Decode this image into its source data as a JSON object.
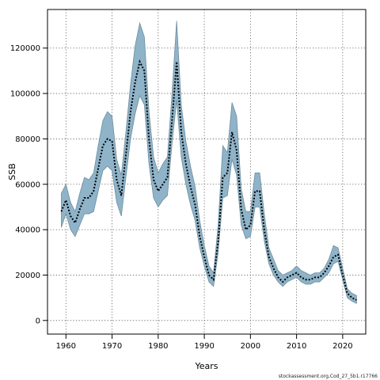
{
  "chart_data": {
    "type": "line",
    "title": "",
    "xlabel": "Years",
    "ylabel": "SSB",
    "xlim": [
      1956,
      2025
    ],
    "ylim": [
      -6000,
      137000
    ],
    "grid": true,
    "x_ticks": [
      1960,
      1970,
      1980,
      1990,
      2000,
      2010,
      2020
    ],
    "y_ticks": [
      0,
      20000,
      40000,
      60000,
      80000,
      100000,
      120000
    ],
    "x_tick_labels": [
      "1960",
      "1970",
      "1980",
      "1990",
      "2000",
      "2010",
      "2020"
    ],
    "y_tick_labels": [
      "0",
      "20000",
      "40000",
      "60000",
      "80000",
      "100000",
      "120000"
    ],
    "series": [
      {
        "role": "ssb-estimate",
        "style": "dotted",
        "color": "#000000",
        "x": [
          1959,
          1960,
          1961,
          1962,
          1963,
          1964,
          1965,
          1966,
          1967,
          1968,
          1969,
          1970,
          1971,
          1972,
          1973,
          1974,
          1975,
          1976,
          1977,
          1978,
          1979,
          1980,
          1981,
          1982,
          1983,
          1984,
          1985,
          1986,
          1987,
          1988,
          1989,
          1990,
          1991,
          1992,
          1993,
          1994,
          1995,
          1996,
          1997,
          1998,
          1999,
          2000,
          2001,
          2002,
          2003,
          2004,
          2005,
          2006,
          2007,
          2008,
          2009,
          2010,
          2011,
          2012,
          2013,
          2014,
          2015,
          2016,
          2017,
          2018,
          2019,
          2020,
          2021,
          2022,
          2023
        ],
        "values": [
          48000,
          53000,
          46000,
          43000,
          49000,
          54000,
          54000,
          57000,
          67000,
          77000,
          80000,
          79000,
          62000,
          55000,
          73000,
          92000,
          105000,
          114000,
          110000,
          80000,
          62000,
          57000,
          60000,
          63000,
          88000,
          114000,
          83000,
          69000,
          59000,
          51000,
          37000,
          28000,
          20000,
          18000,
          35000,
          63000,
          65000,
          83000,
          75000,
          49000,
          40000,
          42000,
          57000,
          57000,
          40000,
          28000,
          23000,
          19000,
          17000,
          19000,
          20000,
          21000,
          19000,
          18000,
          18000,
          19000,
          19000,
          21000,
          24000,
          28000,
          29000,
          20000,
          12000,
          10000,
          9000
        ]
      }
    ],
    "band": {
      "role": "confidence-interval",
      "color": "#8fb3c8",
      "edge_color": "#6e8f9e",
      "x": [
        1959,
        1960,
        1961,
        1962,
        1963,
        1964,
        1965,
        1966,
        1967,
        1968,
        1969,
        1970,
        1971,
        1972,
        1973,
        1974,
        1975,
        1976,
        1977,
        1978,
        1979,
        1980,
        1981,
        1982,
        1983,
        1984,
        1985,
        1986,
        1987,
        1988,
        1989,
        1990,
        1991,
        1992,
        1993,
        1994,
        1995,
        1996,
        1997,
        1998,
        1999,
        2000,
        2001,
        2002,
        2003,
        2004,
        2005,
        2006,
        2007,
        2008,
        2009,
        2010,
        2011,
        2012,
        2013,
        2014,
        2015,
        2016,
        2017,
        2018,
        2019,
        2020,
        2021,
        2022,
        2023
      ],
      "lower": [
        41000,
        47000,
        40000,
        37000,
        42000,
        47000,
        47000,
        48000,
        57000,
        66000,
        68000,
        66000,
        52000,
        46000,
        63000,
        80000,
        91000,
        99000,
        95000,
        69000,
        54000,
        50000,
        53000,
        55000,
        78000,
        97000,
        72000,
        60000,
        51000,
        44000,
        32000,
        24000,
        17000,
        15000,
        30000,
        54000,
        55000,
        71000,
        64000,
        42000,
        36000,
        37000,
        50000,
        50000,
        35000,
        25000,
        20000,
        17000,
        15000,
        17000,
        18000,
        19000,
        17000,
        16000,
        16000,
        17000,
        17000,
        19000,
        21000,
        25000,
        26000,
        18000,
        10000,
        8500,
        7500
      ],
      "upper": [
        56000,
        60000,
        52000,
        48000,
        56000,
        63000,
        62000,
        65000,
        77000,
        88000,
        92000,
        90000,
        71000,
        64000,
        83000,
        104000,
        121000,
        131000,
        125000,
        92000,
        72000,
        65000,
        69000,
        72000,
        100000,
        132000,
        95000,
        79000,
        68000,
        59000,
        44000,
        33000,
        24000,
        21000,
        42000,
        77000,
        74000,
        96000,
        90000,
        58000,
        48000,
        48000,
        65000,
        65000,
        47000,
        32000,
        27000,
        22000,
        20000,
        21000,
        22000,
        24000,
        22000,
        21000,
        20000,
        21000,
        21000,
        23000,
        27000,
        33000,
        32000,
        23000,
        14000,
        12000,
        11000
      ]
    }
  },
  "watermark": "stockassessment.org,Cod_27_5b1.r17766"
}
